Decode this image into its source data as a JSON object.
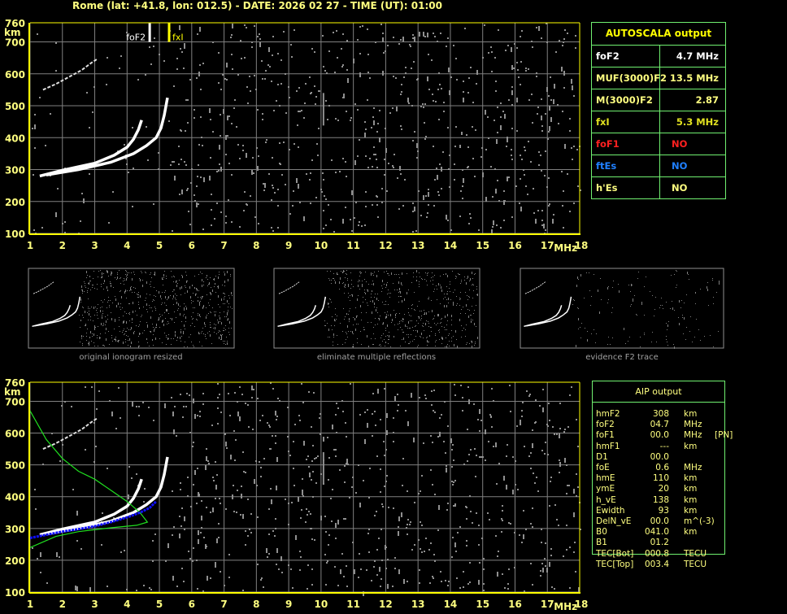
{
  "header": {
    "title": "Rome (lat: +41.8, lon: 012.5) - DATE: 2026 02 27 - TIME (UT): 01:00"
  },
  "axes": {
    "freq_ticks": [
      "1",
      "2",
      "3",
      "4",
      "5",
      "6",
      "7",
      "8",
      "9",
      "10",
      "11",
      "12",
      "13",
      "14",
      "15",
      "16",
      "17",
      "18"
    ],
    "freq_unit": "MHz",
    "height_ticks": [
      "100",
      "200",
      "300",
      "400",
      "500",
      "600",
      "700",
      "760"
    ],
    "height_unit": "km",
    "freq_range_mhz": [
      1,
      18
    ],
    "height_range_km": [
      100,
      760
    ]
  },
  "markers": {
    "foF2": {
      "label": "foF2",
      "freq": 4.7
    },
    "fxI": {
      "label": "fxI",
      "freq": 5.3
    }
  },
  "traces": {
    "o_trace": [
      [
        1.3,
        280
      ],
      [
        2,
        298
      ],
      [
        3,
        320
      ],
      [
        3.6,
        345
      ],
      [
        4.0,
        370
      ],
      [
        4.2,
        395
      ],
      [
        4.35,
        425
      ],
      [
        4.45,
        455
      ]
    ],
    "x_trace": [
      [
        1.5,
        283
      ],
      [
        2.5,
        300
      ],
      [
        3.5,
        323
      ],
      [
        4.2,
        350
      ],
      [
        4.6,
        375
      ],
      [
        4.9,
        400
      ],
      [
        5.05,
        430
      ],
      [
        5.15,
        470
      ],
      [
        5.25,
        525
      ]
    ],
    "multiple_reflection": [
      [
        1.4,
        550
      ],
      [
        1.8,
        568
      ],
      [
        2.2,
        590
      ],
      [
        2.6,
        612
      ],
      [
        2.9,
        635
      ],
      [
        3.1,
        648
      ]
    ],
    "profile_green": [
      [
        1.0,
        670
      ],
      [
        1.5,
        580
      ],
      [
        2.0,
        520
      ],
      [
        2.5,
        480
      ],
      [
        3.0,
        455
      ],
      [
        3.5,
        420
      ],
      [
        4.0,
        385
      ],
      [
        4.4,
        350
      ],
      [
        4.63,
        320
      ],
      [
        4.3,
        310
      ],
      [
        3.5,
        302
      ],
      [
        2.5,
        290
      ],
      [
        1.8,
        275
      ],
      [
        1.0,
        240
      ]
    ],
    "fit_blue": [
      [
        1.0,
        270
      ],
      [
        1.5,
        280
      ],
      [
        2.0,
        290
      ],
      [
        2.5,
        298
      ],
      [
        3.0,
        307
      ],
      [
        3.5,
        320
      ],
      [
        4.0,
        335
      ],
      [
        4.4,
        350
      ],
      [
        4.7,
        365
      ],
      [
        4.9,
        385
      ]
    ]
  },
  "thumbnails": [
    {
      "caption": "original ionogram resized"
    },
    {
      "caption": "eliminate multiple reflections"
    },
    {
      "caption": "evidence F2 trace"
    }
  ],
  "autoscala": {
    "title": "AUTOSCALA output",
    "rows": [
      {
        "key": "foF2",
        "value": "4.7 MHz",
        "color": "#ffffff"
      },
      {
        "key": "MUF(3000)F2",
        "value": "13.5 MHz",
        "color": "#ffff80"
      },
      {
        "key": "M(3000)F2",
        "value": "2.87",
        "color": "#ffff80"
      },
      {
        "key": "fxI",
        "value": "5.3 MHz",
        "color": "#e0e020"
      },
      {
        "key": "foF1",
        "value": "NO",
        "color": "#ff2020"
      },
      {
        "key": "ftEs",
        "value": "NO",
        "color": "#2080ff"
      },
      {
        "key": "h'Es",
        "value": "NO",
        "color": "#ffff80"
      }
    ]
  },
  "aip": {
    "title": "AIP output",
    "rows": [
      {
        "name": "hmF2",
        "value": "308",
        "unit": "km",
        "extra": ""
      },
      {
        "name": "foF2",
        "value": "04.7",
        "unit": "MHz",
        "extra": ""
      },
      {
        "name": "foF1",
        "value": "00.0",
        "unit": "MHz",
        "extra": "[PN]"
      },
      {
        "name": "hmF1",
        "value": "---",
        "unit": "km",
        "extra": ""
      },
      {
        "name": "D1",
        "value": "00.0",
        "unit": "",
        "extra": ""
      },
      {
        "name": "foE",
        "value": "0.6",
        "unit": "MHz",
        "extra": ""
      },
      {
        "name": "hmE",
        "value": "110",
        "unit": "km",
        "extra": ""
      },
      {
        "name": "ymE",
        "value": "20",
        "unit": "km",
        "extra": ""
      },
      {
        "name": "h_vE",
        "value": "138",
        "unit": "km",
        "extra": ""
      },
      {
        "name": "Ewidth",
        "value": "93",
        "unit": "km",
        "extra": ""
      },
      {
        "name": "DelN_vE",
        "value": "00.0",
        "unit": "m^(-3)",
        "extra": ""
      },
      {
        "name": "B0",
        "value": "041.0",
        "unit": "km",
        "extra": ""
      },
      {
        "name": "B1",
        "value": "01.2",
        "unit": "",
        "extra": ""
      },
      {
        "name": "TEC[Bot]",
        "value": "000.8",
        "unit": "TECU",
        "extra": ""
      },
      {
        "name": "TEC[Top]",
        "value": "003.4",
        "unit": "TECU",
        "extra": ""
      }
    ]
  }
}
